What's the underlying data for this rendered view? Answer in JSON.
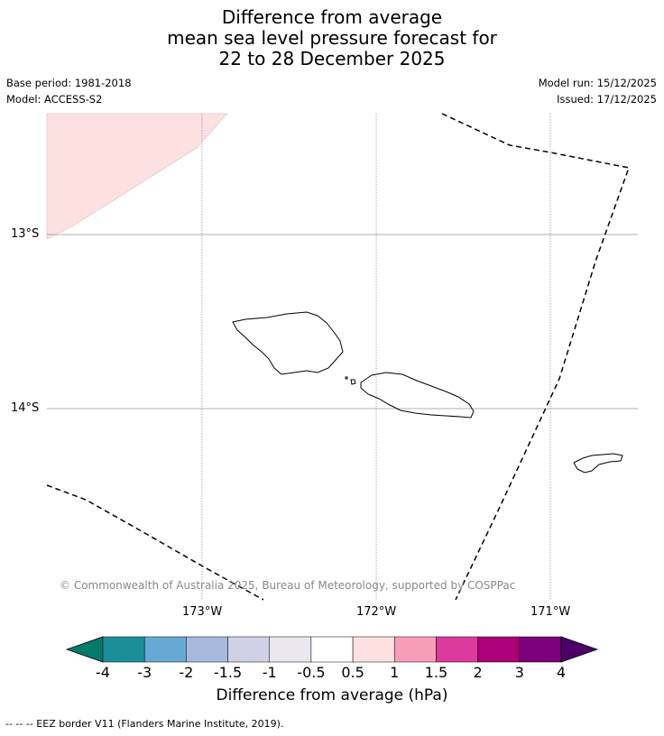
{
  "title": {
    "line1": "Difference from average",
    "line2": "mean sea level pressure forecast for",
    "line3": "22 to 28 December 2025"
  },
  "meta": {
    "base_period": "Base period: 1981-2018",
    "model": "Model: ACCESS-S2",
    "model_run": "Model run: 15/12/2025",
    "issued": "Issued: 17/12/2025"
  },
  "map": {
    "lat_labels": [
      "13°S",
      "14°S"
    ],
    "lon_labels": [
      "173°W",
      "172°W",
      "171°W"
    ],
    "copyright": "© Commonwealth of Australia 2025, Bureau of Meteorology, supported by COSPPac",
    "anomaly_fill_color": "#fde0e0",
    "features": [
      "Upolu island outline",
      "Savai'i island outline",
      "Tutuila island outline",
      "EEZ boundary"
    ]
  },
  "colorbar": {
    "ticks": [
      "-4",
      "-3",
      "-2",
      "-1.5",
      "-1",
      "-0.5",
      "0.5",
      "1",
      "1.5",
      "2",
      "3",
      "4"
    ],
    "colors": [
      "#047a6b",
      "#1a8f99",
      "#67a9d4",
      "#a6bade",
      "#d0d0e6",
      "#eae8ee",
      "#ffffff",
      "#fde0e0",
      "#f89db9",
      "#dc3a9c",
      "#ad0078",
      "#7c0079",
      "#4a0066"
    ],
    "label": "Difference from average (hPa)"
  },
  "footer": "--  --  -- EEZ border V11 (Flanders Marine Institute, 2019)."
}
